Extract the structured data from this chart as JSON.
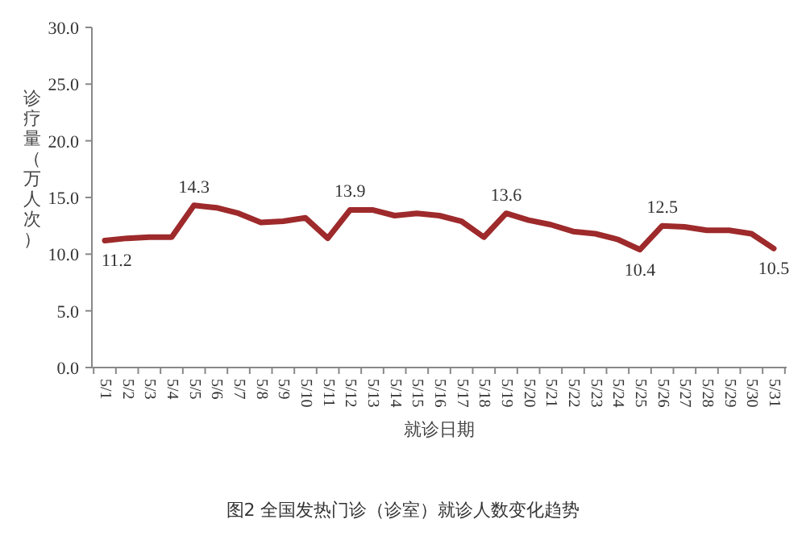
{
  "chart_data": {
    "type": "line",
    "xlabel": "就诊日期",
    "ylabel": "诊疗量（万人次）",
    "annotations": [
      "图2 全国发热门诊（诊室）就诊人数变化趋势"
    ],
    "categories": [
      "5/1",
      "5/2",
      "5/3",
      "5/4",
      "5/5",
      "5/6",
      "5/7",
      "5/8",
      "5/9",
      "5/10",
      "5/11",
      "5/12",
      "5/13",
      "5/14",
      "5/15",
      "5/16",
      "5/17",
      "5/18",
      "5/19",
      "5/20",
      "5/21",
      "5/22",
      "5/23",
      "5/24",
      "5/25",
      "5/26",
      "5/27",
      "5/28",
      "5/29",
      "5/30",
      "5/31"
    ],
    "series": [
      {
        "color": "#9e2a2b",
        "values": [
          11.2,
          11.4,
          11.5,
          11.5,
          14.3,
          14.1,
          13.6,
          12.8,
          12.9,
          13.2,
          11.4,
          13.9,
          13.9,
          13.4,
          13.6,
          13.4,
          12.9,
          11.5,
          13.6,
          13.0,
          12.6,
          12.0,
          11.8,
          11.3,
          10.4,
          12.5,
          12.4,
          12.1,
          12.1,
          11.8,
          10.5
        ],
        "value_labels": [
          "11.2",
          null,
          null,
          null,
          "14.3",
          null,
          null,
          null,
          null,
          null,
          null,
          "13.9",
          null,
          null,
          null,
          null,
          null,
          null,
          "13.6",
          null,
          null,
          null,
          null,
          null,
          "10.4",
          "12.5",
          null,
          null,
          null,
          null,
          "10.5"
        ]
      }
    ],
    "ylim": [
      0,
      30
    ],
    "yticks": [
      {
        "value": 0,
        "label": "0.0"
      },
      {
        "value": 5,
        "label": "5.0"
      },
      {
        "value": 10,
        "label": "10.0"
      },
      {
        "value": 15,
        "label": "15.0"
      },
      {
        "value": 20,
        "label": "20.0"
      },
      {
        "value": 25,
        "label": "25.0"
      },
      {
        "value": 30,
        "label": "30.0"
      }
    ],
    "grid": false,
    "marker": "none",
    "line_style": "solid"
  }
}
